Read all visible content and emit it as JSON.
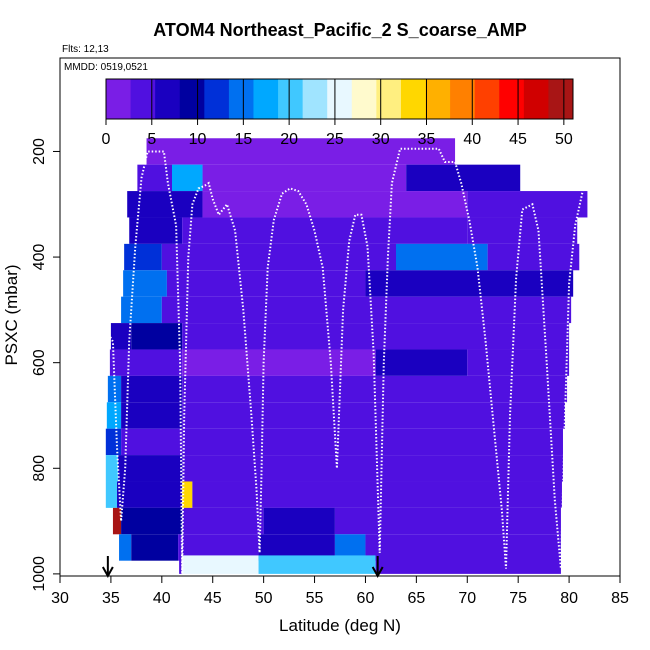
{
  "chart_data": {
    "type": "heatmap",
    "title": "ATOM4 Northeast_Pacific_2 S_coarse_AMP",
    "subtitle_flights": "Flts: 12,13",
    "subtitle_dates": "MMDD: 0519,0521",
    "xlabel": "Latitude (deg N)",
    "ylabel": "PSXC (mbar)",
    "xlim": [
      30,
      85
    ],
    "ylim": [
      1000,
      0
    ],
    "x_ticks": [
      "30",
      "35",
      "40",
      "45",
      "50",
      "55",
      "60",
      "65",
      "70",
      "75",
      "80",
      "85"
    ],
    "y_ticks": [
      "200",
      "400",
      "600",
      "800",
      "1000"
    ],
    "y_tick_values": [
      200,
      400,
      600,
      800,
      1000
    ],
    "x_tick_values": [
      30,
      35,
      40,
      45,
      50,
      55,
      60,
      65,
      70,
      75,
      80,
      85
    ],
    "colorbar": {
      "min": 0,
      "max": 51,
      "ticks": [
        "0",
        "5",
        "10",
        "15",
        "20",
        "25",
        "30",
        "35",
        "40",
        "45",
        "50"
      ],
      "tick_values": [
        0,
        5,
        10,
        15,
        20,
        25,
        30,
        35,
        40,
        45,
        50
      ],
      "colors": [
        "#7a1ee6",
        "#5010e0",
        "#1a00c0",
        "#0000a0",
        "#0030d8",
        "#0070f0",
        "#00a8ff",
        "#40c8ff",
        "#a0e4ff",
        "#e8f8ff",
        "#fffacd",
        "#ffef80",
        "#ffd700",
        "#ffb000",
        "#ff8000",
        "#ff4000",
        "#ff0000",
        "#d00000",
        "#a81515"
      ]
    },
    "arrows_lat": [
      34.7,
      61.2
    ],
    "cell_lat_width": 1.0,
    "cell_pressure_height": 50,
    "layers": [
      {
        "p": 200,
        "lat_min": 38.5,
        "lat_max": 68.8,
        "values": [
          {
            "from": 38.5,
            "to": 68.8,
            "v": 2
          }
        ]
      },
      {
        "p": 250,
        "lat_min": 37.6,
        "lat_max": 75.2,
        "values": [
          {
            "from": 37.6,
            "to": 41.0,
            "v": 4
          },
          {
            "from": 41.0,
            "to": 44.0,
            "v": 17
          },
          {
            "from": 44.0,
            "to": 64.0,
            "v": 2
          },
          {
            "from": 64.0,
            "to": 75.2,
            "v": 6
          }
        ]
      },
      {
        "p": 300,
        "lat_min": 36.6,
        "lat_max": 81.8,
        "values": [
          {
            "from": 36.6,
            "to": 44.0,
            "v": 6
          },
          {
            "from": 44.0,
            "to": 70.0,
            "v": 2
          },
          {
            "from": 70.0,
            "to": 81.8,
            "v": 4
          }
        ]
      },
      {
        "p": 350,
        "lat_min": 36.8,
        "lat_max": 80.8,
        "values": [
          {
            "from": 36.8,
            "to": 42.0,
            "v": 7
          },
          {
            "from": 42.0,
            "to": 70.0,
            "v": 3
          },
          {
            "from": 70.0,
            "to": 80.8,
            "v": 5
          }
        ]
      },
      {
        "p": 400,
        "lat_min": 36.3,
        "lat_max": 81.0,
        "values": [
          {
            "from": 36.3,
            "to": 40.0,
            "v": 13
          },
          {
            "from": 40.0,
            "to": 63.0,
            "v": 4
          },
          {
            "from": 63.0,
            "to": 72.0,
            "v": 14
          },
          {
            "from": 72.0,
            "to": 81.0,
            "v": 3
          }
        ]
      },
      {
        "p": 450,
        "lat_min": 36.2,
        "lat_max": 80.4,
        "values": [
          {
            "from": 36.2,
            "to": 40.5,
            "v": 15
          },
          {
            "from": 40.5,
            "to": 60.0,
            "v": 3
          },
          {
            "from": 60.0,
            "to": 80.4,
            "v": 6
          }
        ]
      },
      {
        "p": 500,
        "lat_min": 36.0,
        "lat_max": 80.2,
        "values": [
          {
            "from": 36.0,
            "to": 40.0,
            "v": 14
          },
          {
            "from": 40.0,
            "to": 80.2,
            "v": 3
          }
        ]
      },
      {
        "p": 550,
        "lat_min": 35.0,
        "lat_max": 80.0,
        "values": [
          {
            "from": 35.0,
            "to": 37.0,
            "v": 6
          },
          {
            "from": 37.0,
            "to": 42.0,
            "v": 10
          },
          {
            "from": 42.0,
            "to": 80.0,
            "v": 3
          }
        ]
      },
      {
        "p": 600,
        "lat_min": 34.9,
        "lat_max": 80.0,
        "values": [
          {
            "from": 34.9,
            "to": 42.0,
            "v": 5
          },
          {
            "from": 42.0,
            "to": 61.0,
            "v": 2
          },
          {
            "from": 61.0,
            "to": 70.0,
            "v": 7
          },
          {
            "from": 70.0,
            "to": 80.0,
            "v": 4
          }
        ]
      },
      {
        "p": 650,
        "lat_min": 34.7,
        "lat_max": 79.8,
        "values": [
          {
            "from": 34.7,
            "to": 36.0,
            "v": 14
          },
          {
            "from": 36.0,
            "to": 42.0,
            "v": 6
          },
          {
            "from": 42.0,
            "to": 79.8,
            "v": 3
          }
        ]
      },
      {
        "p": 700,
        "lat_min": 34.6,
        "lat_max": 79.6,
        "values": [
          {
            "from": 34.6,
            "to": 36.0,
            "v": 17
          },
          {
            "from": 36.0,
            "to": 42.0,
            "v": 7
          },
          {
            "from": 42.0,
            "to": 79.6,
            "v": 3
          }
        ]
      },
      {
        "p": 750,
        "lat_min": 34.5,
        "lat_max": 79.4,
        "values": [
          {
            "from": 34.5,
            "to": 36.0,
            "v": 12
          },
          {
            "from": 36.0,
            "to": 42.0,
            "v": 5
          },
          {
            "from": 42.0,
            "to": 79.4,
            "v": 3
          }
        ]
      },
      {
        "p": 800,
        "lat_min": 34.5,
        "lat_max": 79.4,
        "values": [
          {
            "from": 34.5,
            "to": 35.7,
            "v": 21
          },
          {
            "from": 35.7,
            "to": 42.0,
            "v": 6
          },
          {
            "from": 42.0,
            "to": 79.4,
            "v": 3
          }
        ]
      },
      {
        "p": 850,
        "lat_min": 34.5,
        "lat_max": 79.3,
        "values": [
          {
            "from": 34.5,
            "to": 35.6,
            "v": 19
          },
          {
            "from": 35.6,
            "to": 42.0,
            "v": 7
          },
          {
            "from": 42.0,
            "to": 43.0,
            "v": 33
          },
          {
            "from": 43.0,
            "to": 79.3,
            "v": 4
          }
        ]
      },
      {
        "p": 900,
        "lat_min": 35.2,
        "lat_max": 79.2,
        "values": [
          {
            "from": 35.2,
            "to": 36.0,
            "v": 49
          },
          {
            "from": 36.0,
            "to": 42.0,
            "v": 10
          },
          {
            "from": 42.0,
            "to": 50.0,
            "v": 3
          },
          {
            "from": 50.0,
            "to": 57.0,
            "v": 6
          },
          {
            "from": 57.0,
            "to": 79.2,
            "v": 4
          }
        ]
      },
      {
        "p": 950,
        "lat_min": 35.8,
        "lat_max": 79.2,
        "values": [
          {
            "from": 35.8,
            "to": 37.0,
            "v": 16
          },
          {
            "from": 37.0,
            "to": 41.6,
            "v": 9
          },
          {
            "from": 41.6,
            "to": 42.0,
            "v": 3
          },
          {
            "from": 42.0,
            "to": 49.5,
            "v": 4
          },
          {
            "from": 49.5,
            "to": 57.0,
            "v": 8
          },
          {
            "from": 57.0,
            "to": 60.0,
            "v": 16
          },
          {
            "from": 60.0,
            "to": 79.2,
            "v": 4
          }
        ]
      },
      {
        "p": 990,
        "lat_min": 41.7,
        "lat_max": 79.2,
        "values": [
          {
            "from": 41.7,
            "to": 42.0,
            "v": 3
          },
          {
            "from": 42.0,
            "to": 49.5,
            "v": 26
          },
          {
            "from": 49.5,
            "to": 61.0,
            "v": 20
          },
          {
            "from": 61.0,
            "to": 79.2,
            "v": 3
          }
        ]
      }
    ],
    "flight_track": [
      [
        34.6,
        540
      ],
      [
        35.2,
        560
      ],
      [
        35.6,
        760
      ],
      [
        36.0,
        900
      ],
      [
        36.4,
        800
      ],
      [
        36.8,
        560
      ],
      [
        37.4,
        380
      ],
      [
        38.0,
        250
      ],
      [
        38.6,
        200
      ],
      [
        40.2,
        200
      ],
      [
        40.6,
        260
      ],
      [
        41.0,
        300
      ],
      [
        41.4,
        340
      ],
      [
        41.8,
        600
      ],
      [
        42.0,
        1000
      ],
      [
        42.0,
        1000
      ],
      [
        42.2,
        700
      ],
      [
        42.6,
        400
      ],
      [
        43.0,
        300
      ],
      [
        43.6,
        270
      ],
      [
        44.2,
        265
      ],
      [
        44.6,
        260
      ],
      [
        45.0,
        290
      ],
      [
        45.6,
        320
      ],
      [
        46.4,
        300
      ],
      [
        47.2,
        350
      ],
      [
        48.0,
        500
      ],
      [
        48.8,
        700
      ],
      [
        49.3,
        840
      ],
      [
        49.6,
        960
      ],
      [
        49.6,
        960
      ],
      [
        49.8,
        800
      ],
      [
        50.0,
        600
      ],
      [
        50.4,
        420
      ],
      [
        51.0,
        330
      ],
      [
        51.8,
        280
      ],
      [
        52.6,
        270
      ],
      [
        53.4,
        275
      ],
      [
        54.2,
        300
      ],
      [
        55.0,
        350
      ],
      [
        55.8,
        420
      ],
      [
        56.6,
        600
      ],
      [
        57.2,
        800
      ],
      [
        57.2,
        800
      ],
      [
        57.8,
        500
      ],
      [
        58.4,
        370
      ],
      [
        59.0,
        320
      ],
      [
        59.6,
        320
      ],
      [
        60.2,
        380
      ],
      [
        60.8,
        580
      ],
      [
        61.4,
        960
      ],
      [
        61.4,
        960
      ],
      [
        61.8,
        600
      ],
      [
        62.2,
        400
      ],
      [
        62.6,
        260
      ],
      [
        63.4,
        195
      ],
      [
        67.2,
        195
      ],
      [
        67.8,
        220
      ],
      [
        68.8,
        220
      ],
      [
        69.4,
        260
      ],
      [
        70.2,
        330
      ],
      [
        71.0,
        420
      ],
      [
        71.8,
        560
      ],
      [
        72.6,
        720
      ],
      [
        73.4,
        880
      ],
      [
        73.8,
        990
      ],
      [
        73.8,
        990
      ],
      [
        74.2,
        700
      ],
      [
        74.8,
        440
      ],
      [
        75.4,
        310
      ],
      [
        76.4,
        300
      ],
      [
        77.0,
        350
      ],
      [
        77.8,
        600
      ],
      [
        78.6,
        860
      ],
      [
        79.2,
        990
      ],
      [
        79.6,
        700
      ],
      [
        80.0,
        450
      ],
      [
        80.6,
        340
      ],
      [
        81.4,
        270
      ]
    ]
  }
}
